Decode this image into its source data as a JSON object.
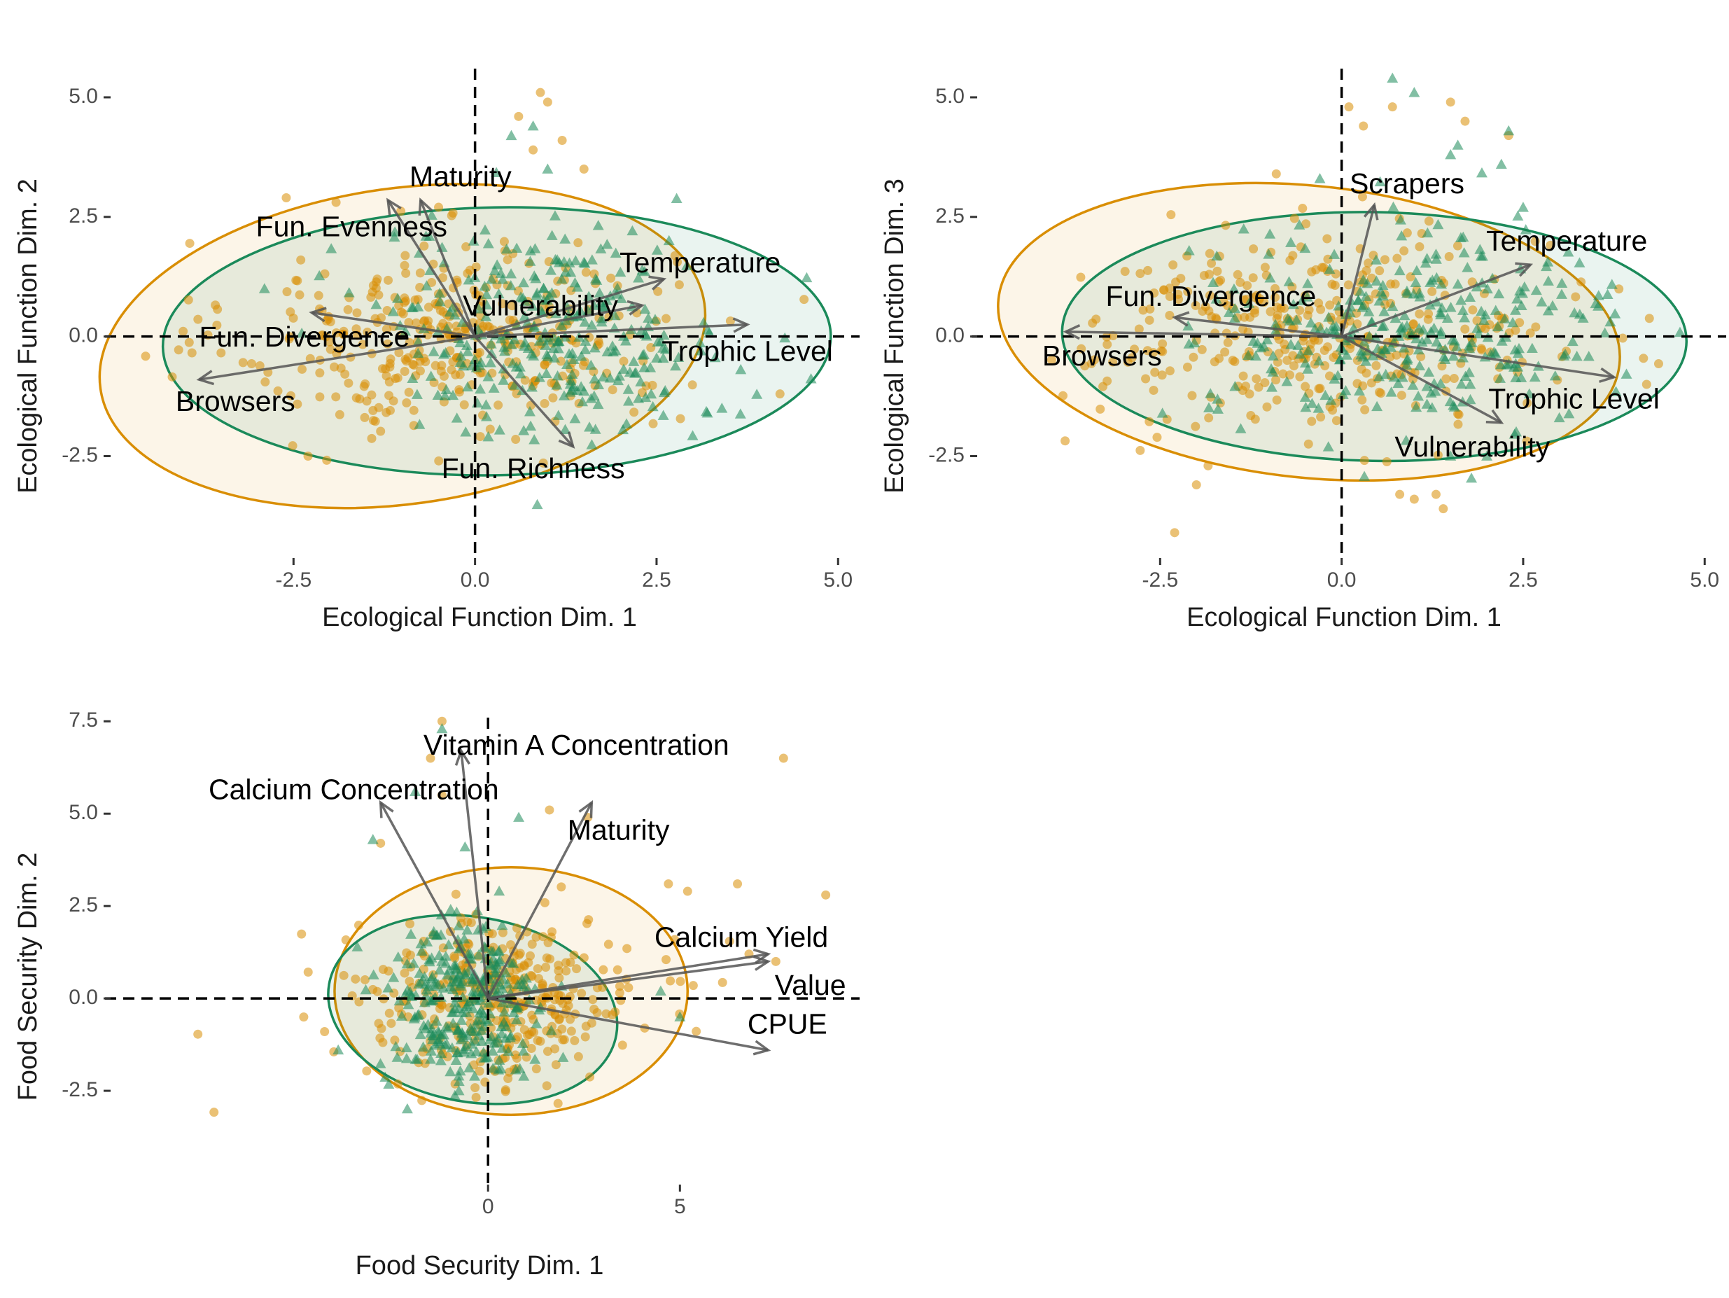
{
  "colors": {
    "orange": "#D98E04",
    "green": "#1B8A5A",
    "arrow": "#555555",
    "zero_line": "#000000",
    "tick_text": "#4d4d4d"
  },
  "chart_data": [
    {
      "type": "scatter",
      "subtype": "biplot",
      "xlabel": "Ecological Function Dim. 1",
      "ylabel": "Ecological Function Dim. 2",
      "xlim": [
        -5.0,
        5.2
      ],
      "ylim": [
        -4.6,
        5.6
      ],
      "x_ticks": [
        -2.5,
        0.0,
        2.5,
        5.0
      ],
      "x_tick_labels": [
        "-2.5",
        "0.0",
        "2.5",
        "5.0"
      ],
      "y_ticks": [
        -2.5,
        0.0,
        2.5,
        5.0
      ],
      "y_tick_labels": [
        "-2.5",
        "0.0",
        "2.5",
        "5.0"
      ],
      "zero_lines": true,
      "grid": false,
      "ellipses": [
        {
          "group": "orange",
          "cx": -1.0,
          "cy": -0.2,
          "rx": 4.2,
          "ry": 3.3,
          "angle": 8
        },
        {
          "group": "green",
          "cx": 0.3,
          "cy": -0.1,
          "rx": 4.6,
          "ry": 2.8,
          "angle": 1
        }
      ],
      "loadings": [
        {
          "label": "Maturity",
          "x": -0.75,
          "y": 2.85,
          "lx": -0.2,
          "ly": 3.3
        },
        {
          "label": "Fun. Evenness",
          "x": -1.2,
          "y": 2.85,
          "lx": -1.7,
          "ly": 2.25
        },
        {
          "label": "Temperature",
          "x": 2.6,
          "y": 1.2,
          "lx": 3.1,
          "ly": 1.5
        },
        {
          "label": "Vulnerability",
          "x": 2.3,
          "y": 0.65,
          "lx": 0.9,
          "ly": 0.6
        },
        {
          "label": "Fun. Divergence",
          "x": -2.25,
          "y": 0.5,
          "lx": -2.35,
          "ly": -0.05
        },
        {
          "label": "Trophic Level",
          "x": 3.75,
          "y": 0.25,
          "lx": 3.75,
          "ly": -0.35
        },
        {
          "label": "Browsers",
          "x": -3.8,
          "y": -0.9,
          "lx": -3.3,
          "ly": -1.4
        },
        {
          "label": "Fun. Richness",
          "x": 1.35,
          "y": -2.3,
          "lx": 0.8,
          "ly": -2.8
        }
      ],
      "point_clouds": [
        {
          "group": "orange",
          "shape": "circle",
          "n": 380,
          "cx": -0.3,
          "cy": 0.0,
          "sx": 1.5,
          "sy": 1.0,
          "outliers": [
            [
              0.9,
              5.1
            ],
            [
              1.0,
              4.9
            ],
            [
              0.6,
              4.6
            ],
            [
              1.2,
              4.1
            ],
            [
              0.8,
              3.9
            ],
            [
              1.5,
              3.5
            ],
            [
              -2.6,
              2.9
            ],
            [
              -2.4,
              1.6
            ],
            [
              4.2,
              -1.2
            ],
            [
              -2.3,
              -2.5
            ],
            [
              -0.5,
              -2.6
            ]
          ]
        },
        {
          "group": "green",
          "shape": "triangle",
          "n": 320,
          "cx": 1.1,
          "cy": 0.1,
          "sx": 1.2,
          "sy": 1.1,
          "outliers": [
            [
              0.8,
              4.4
            ],
            [
              0.5,
              4.2
            ],
            [
              1.0,
              3.5
            ],
            [
              3.4,
              -1.5
            ],
            [
              3.2,
              -1.6
            ],
            [
              -2.9,
              1.0
            ]
          ]
        }
      ]
    },
    {
      "type": "scatter",
      "subtype": "biplot",
      "xlabel": "Ecological Function Dim. 1",
      "ylabel": "Ecological Function Dim. 3",
      "xlim": [
        -5.0,
        5.2
      ],
      "ylim": [
        -4.6,
        5.6
      ],
      "x_ticks": [
        -2.5,
        0.0,
        2.5,
        5.0
      ],
      "x_tick_labels": [
        "-2.5",
        "0.0",
        "2.5",
        "5.0"
      ],
      "y_ticks": [
        -2.5,
        0.0,
        2.5
      ],
      "y_tick_labels": [
        "-2.5",
        "0.0",
        "2.5",
        "5.0"
      ],
      "y_tick_label_values": [
        -2.5,
        0.0,
        2.5,
        5.0
      ],
      "zero_lines": true,
      "grid": false,
      "ellipses": [
        {
          "group": "orange",
          "cx": -0.45,
          "cy": 0.1,
          "rx": 4.3,
          "ry": 3.05,
          "angle": -6
        },
        {
          "group": "green",
          "cx": 0.45,
          "cy": 0.0,
          "rx": 4.3,
          "ry": 2.6,
          "angle": -1
        }
      ],
      "loadings": [
        {
          "label": "Scrapers",
          "x": 0.45,
          "y": 2.75,
          "lx": 0.9,
          "ly": 3.15
        },
        {
          "label": "Temperature",
          "x": 2.6,
          "y": 1.5,
          "lx": 3.1,
          "ly": 1.95
        },
        {
          "label": "Fun. Divergence",
          "x": -2.3,
          "y": 0.4,
          "lx": -1.8,
          "ly": 0.8
        },
        {
          "label": "Browsers",
          "x": -3.8,
          "y": 0.1,
          "lx": -3.3,
          "ly": -0.45
        },
        {
          "label": "Trophic Level",
          "x": 3.75,
          "y": -0.85,
          "lx": 3.2,
          "ly": -1.35
        },
        {
          "label": "Vulnerability",
          "x": 2.2,
          "y": -1.8,
          "lx": 1.8,
          "ly": -2.35
        }
      ],
      "point_clouds": [
        {
          "group": "orange",
          "shape": "circle",
          "n": 380,
          "cx": -0.3,
          "cy": 0.1,
          "sx": 1.6,
          "sy": 1.0,
          "outliers": [
            [
              0.1,
              4.8
            ],
            [
              0.3,
              4.4
            ],
            [
              1.5,
              4.9
            ],
            [
              1.7,
              4.5
            ],
            [
              2.3,
              4.2
            ],
            [
              0.7,
              4.8
            ],
            [
              -0.9,
              3.4
            ],
            [
              -2.3,
              -4.1
            ],
            [
              -2.0,
              -3.1
            ],
            [
              0.8,
              -3.3
            ],
            [
              1.0,
              -3.4
            ],
            [
              1.4,
              -3.6
            ],
            [
              1.3,
              -3.3
            ],
            [
              4.2,
              -1.0
            ]
          ]
        },
        {
          "group": "green",
          "shape": "triangle",
          "n": 320,
          "cx": 1.0,
          "cy": 0.1,
          "sx": 1.4,
          "sy": 1.0,
          "outliers": [
            [
              0.7,
              5.4
            ],
            [
              1.0,
              5.1
            ],
            [
              1.6,
              4.0
            ],
            [
              1.5,
              3.8
            ],
            [
              2.3,
              4.3
            ],
            [
              2.2,
              3.6
            ],
            [
              2.5,
              2.7
            ],
            [
              -0.3,
              3.3
            ],
            [
              1.5,
              -2.5
            ],
            [
              2.0,
              -2.5
            ]
          ]
        }
      ]
    },
    {
      "type": "scatter",
      "subtype": "biplot",
      "xlabel": "Food Security Dim. 1",
      "ylabel": "Food Security Dim. 2",
      "xlim": [
        -9.8,
        9.5
      ],
      "ylim": [
        -5.0,
        7.6
      ],
      "x_ticks": [
        0,
        5
      ],
      "x_tick_labels": [
        "0",
        "5"
      ],
      "y_ticks": [
        -2.5,
        0.0,
        2.5,
        5.0,
        7.5
      ],
      "y_tick_labels": [
        "-2.5",
        "0.0",
        "2.5",
        "5.0",
        "7.5"
      ],
      "zero_lines": true,
      "grid": false,
      "ellipses": [
        {
          "group": "orange",
          "cx": 0.6,
          "cy": 0.2,
          "rx": 4.6,
          "ry": 3.35,
          "angle": 0
        },
        {
          "group": "green",
          "cx": -0.4,
          "cy": -0.3,
          "rx": 3.8,
          "ry": 2.5,
          "angle": -10
        }
      ],
      "loadings": [
        {
          "label": "Vitamin A Concentration",
          "x": -0.7,
          "y": 6.7,
          "lx": 2.3,
          "ly": 6.8
        },
        {
          "label": "Calcium Concentration",
          "x": -2.8,
          "y": 5.3,
          "lx": -3.5,
          "ly": 5.6
        },
        {
          "label": "Maturity",
          "x": 2.7,
          "y": 5.3,
          "lx": 3.4,
          "ly": 4.5
        },
        {
          "label": "Calcium Yield",
          "x": 7.3,
          "y": 1.2,
          "lx": 6.6,
          "ly": 1.6
        },
        {
          "label": "Value",
          "x": 7.3,
          "y": 1.0,
          "lx": 8.4,
          "ly": 0.3
        },
        {
          "label": "CPUE",
          "x": 7.3,
          "y": -1.4,
          "lx": 7.8,
          "ly": -0.75
        }
      ],
      "point_clouds": [
        {
          "group": "orange",
          "shape": "circle",
          "n": 360,
          "cx": 0.3,
          "cy": 0.0,
          "sx": 1.9,
          "sy": 1.1,
          "outliers": [
            [
              -1.2,
              7.5
            ],
            [
              -1.5,
              6.5
            ],
            [
              -2.8,
              4.2
            ],
            [
              -1.2,
              5.5
            ],
            [
              1.6,
              5.1
            ],
            [
              2.6,
              4.9
            ],
            [
              7.7,
              6.5
            ],
            [
              8.8,
              2.8
            ],
            [
              6.5,
              3.1
            ],
            [
              6.8,
              1.2
            ],
            [
              7.5,
              1.0
            ],
            [
              4.7,
              3.1
            ],
            [
              5.2,
              2.9
            ]
          ]
        },
        {
          "group": "green",
          "shape": "triangle",
          "n": 300,
          "cx": -0.7,
          "cy": -0.2,
          "sx": 1.0,
          "sy": 1.2,
          "outliers": [
            [
              -1.2,
              7.3
            ],
            [
              -3.0,
              4.3
            ],
            [
              -1.9,
              5.6
            ],
            [
              0.8,
              4.9
            ],
            [
              -0.6,
              4.1
            ],
            [
              4.5,
              0.2
            ],
            [
              5.0,
              -0.5
            ]
          ]
        }
      ]
    }
  ]
}
